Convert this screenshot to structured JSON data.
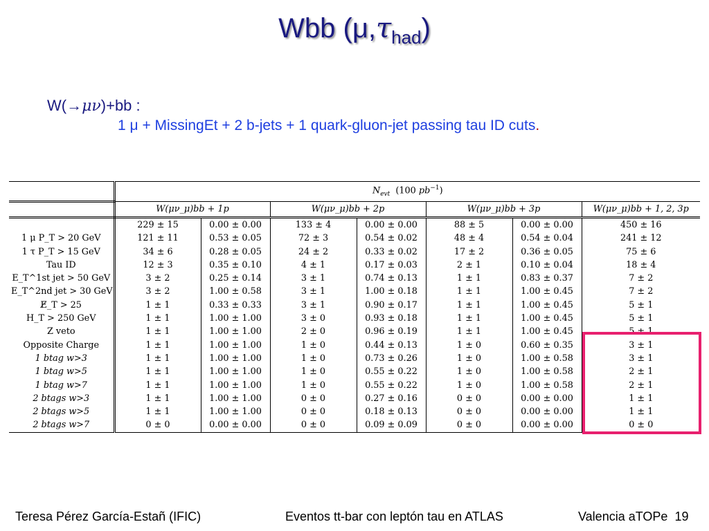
{
  "title": {
    "main": "Wbb (μ,",
    "tau": "τ",
    "sub": "had",
    "close": ")"
  },
  "process": {
    "prefix": "W(",
    "arrow": "→",
    "symbols": "μν",
    "suffix": ")+bb :"
  },
  "selection": {
    "text": "1 μ  + MissingEt + 2 b-jets + 1 quark-gluon-jet passing tau ID cuts",
    "period": "."
  },
  "table": {
    "header_top": "N_evt  (100 pb⁻¹)",
    "columns": [
      "W(μν_μ)bb + 1p",
      "W(μν_μ)bb + 2p",
      "W(μν_μ)bb + 3p",
      "W(μν_μ)bb + 1, 2, 3p"
    ],
    "rows": [
      {
        "label": "",
        "italic": false,
        "cells": [
          "229 ± 15",
          "0.00 ± 0.00",
          "133 ± 4",
          "0.00 ± 0.00",
          "88 ± 5",
          "0.00 ± 0.00",
          "450 ± 16"
        ]
      },
      {
        "label": "1 μ  P_T > 20 GeV",
        "italic": false,
        "cells": [
          "121 ± 11",
          "0.53 ± 0.05",
          "72 ± 3",
          "0.54 ± 0.02",
          "48 ± 4",
          "0.54 ± 0.04",
          "241 ± 12"
        ]
      },
      {
        "label": "1 τ  P_T > 15 GeV",
        "italic": false,
        "cells": [
          "34 ± 6",
          "0.28 ± 0.05",
          "24 ± 2",
          "0.33 ± 0.02",
          "17 ± 2",
          "0.36 ± 0.05",
          "75 ± 6"
        ]
      },
      {
        "label": "Tau ID",
        "italic": false,
        "cells": [
          "12 ± 3",
          "0.35 ± 0.10",
          "4 ± 1",
          "0.17 ± 0.03",
          "2 ± 1",
          "0.10 ± 0.04",
          "18 ± 4"
        ]
      },
      {
        "label": "E_T^1st jet > 50 GeV",
        "italic": false,
        "cells": [
          "3 ± 2",
          "0.25 ± 0.14",
          "3 ± 1",
          "0.74 ± 0.13",
          "1 ± 1",
          "0.83 ± 0.37",
          "7 ± 2"
        ]
      },
      {
        "label": "E_T^2nd jet > 30 GeV",
        "italic": false,
        "cells": [
          "3 ± 2",
          "1.00 ± 0.58",
          "3 ± 1",
          "1.00 ± 0.18",
          "1 ± 1",
          "1.00 ± 0.45",
          "7 ± 2"
        ]
      },
      {
        "label": "E̸_T > 25",
        "italic": false,
        "cells": [
          "1 ± 1",
          "0.33 ± 0.33",
          "3 ± 1",
          "0.90 ± 0.17",
          "1 ± 1",
          "1.00 ± 0.45",
          "5 ± 1"
        ]
      },
      {
        "label": "H_T > 250 GeV",
        "italic": false,
        "cells": [
          "1 ± 1",
          "1.00 ± 1.00",
          "3 ± 0",
          "0.93 ± 0.18",
          "1 ± 1",
          "1.00 ± 0.45",
          "5 ± 1"
        ]
      },
      {
        "label": "Z veto",
        "italic": false,
        "cells": [
          "1 ± 1",
          "1.00 ± 1.00",
          "2 ± 0",
          "0.96 ± 0.19",
          "1 ± 1",
          "1.00 ± 0.45",
          "5 ± 1"
        ]
      },
      {
        "label": "Opposite Charge",
        "italic": false,
        "cells": [
          "1 ± 1",
          "1.00 ± 1.00",
          "1 ± 0",
          "0.44 ± 0.13",
          "1 ± 0",
          "0.60 ± 0.35",
          "3 ± 1"
        ]
      },
      {
        "label": "1 btag w>3",
        "italic": true,
        "cells": [
          "1 ± 1",
          "1.00 ± 1.00",
          "1 ± 0",
          "0.73 ± 0.26",
          "1 ± 0",
          "1.00 ± 0.58",
          "3 ± 1"
        ]
      },
      {
        "label": "1 btag w>5",
        "italic": true,
        "cells": [
          "1 ± 1",
          "1.00 ± 1.00",
          "1 ± 0",
          "0.55 ± 0.22",
          "1 ± 0",
          "1.00 ± 0.58",
          "2 ± 1"
        ]
      },
      {
        "label": "1 btag w>7",
        "italic": true,
        "cells": [
          "1 ± 1",
          "1.00 ± 1.00",
          "1 ± 0",
          "0.55 ± 0.22",
          "1 ± 0",
          "1.00 ± 0.58",
          "2 ± 1"
        ]
      },
      {
        "label": "2 btags w>3",
        "italic": true,
        "cells": [
          "1 ± 1",
          "1.00 ± 1.00",
          "0 ± 0",
          "0.27 ± 0.16",
          "0 ± 0",
          "0.00 ± 0.00",
          "1 ± 1"
        ]
      },
      {
        "label": "2 btags w>5",
        "italic": true,
        "cells": [
          "1 ± 1",
          "1.00 ± 1.00",
          "0 ± 0",
          "0.18 ± 0.13",
          "0 ± 0",
          "0.00 ± 0.00",
          "1 ± 1"
        ]
      },
      {
        "label": "2 btags w>7",
        "italic": true,
        "cells": [
          "0 ± 0",
          "0.00 ± 0.00",
          "0 ± 0",
          "0.09 ± 0.09",
          "0 ± 0",
          "0.00 ± 0.00",
          "0 ± 0"
        ]
      }
    ]
  },
  "highlight_color": "#e8206e",
  "footer": {
    "author": "Teresa Pérez García-Estañ (IFIC)",
    "talk": "Eventos tt-bar con leptón tau en ATLAS",
    "venue": "Valencia aTOPe",
    "page": "19"
  }
}
